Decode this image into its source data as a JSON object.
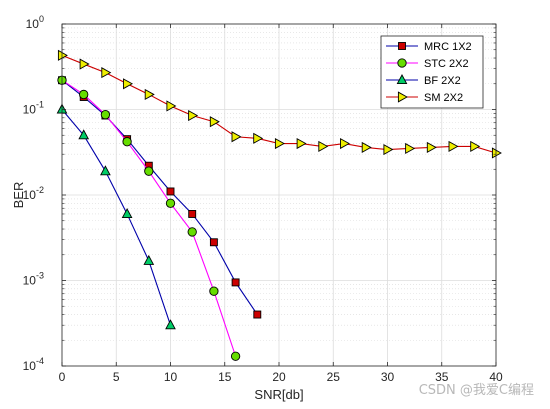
{
  "chart_data": {
    "type": "line",
    "xlabel": "SNR[db]",
    "ylabel": "BER",
    "xlim": [
      0,
      40
    ],
    "ylim": [
      0.0001,
      1
    ],
    "yscale": "log",
    "grid": true,
    "legend_position": "top-right",
    "xticks": [
      "0",
      "5",
      "10",
      "15",
      "20",
      "25",
      "30",
      "35",
      "40"
    ],
    "yticks": [
      {
        "base": "10",
        "exp": "0",
        "value": 1
      },
      {
        "base": "10",
        "exp": "-1",
        "value": 0.1
      },
      {
        "base": "10",
        "exp": "-2",
        "value": 0.01
      },
      {
        "base": "10",
        "exp": "-3",
        "value": 0.001
      },
      {
        "base": "10",
        "exp": "-4",
        "value": 0.0001
      }
    ],
    "series": [
      {
        "name": "MRC 1X2",
        "color": "#0000aa",
        "marker": "square",
        "marker_fill": "#cc0000",
        "x": [
          0,
          2,
          4,
          6,
          8,
          10,
          12,
          14,
          16,
          18
        ],
        "y": [
          0.22,
          0.14,
          0.085,
          0.045,
          0.022,
          0.011,
          0.006,
          0.0028,
          0.00095,
          0.0004
        ]
      },
      {
        "name": "STC 2X2",
        "color": "#ff00ff",
        "marker": "circle",
        "marker_fill": "#66dd00",
        "x": [
          0,
          2,
          4,
          6,
          8,
          10,
          12,
          14,
          16
        ],
        "y": [
          0.22,
          0.15,
          0.087,
          0.042,
          0.019,
          0.008,
          0.0037,
          0.00075,
          0.00013
        ]
      },
      {
        "name": "BF 2X2",
        "color": "#0000aa",
        "marker": "triangle-up",
        "marker_fill": "#00cc66",
        "x": [
          0,
          2,
          4,
          6,
          8,
          10
        ],
        "y": [
          0.1,
          0.05,
          0.019,
          0.006,
          0.0017,
          0.0003
        ]
      },
      {
        "name": "SM 2X2",
        "color": "#cc0000",
        "marker": "triangle-right",
        "marker_fill": "#eeee00",
        "x": [
          0,
          2,
          4,
          6,
          8,
          10,
          12,
          14,
          16,
          18,
          20,
          22,
          24,
          26,
          28,
          30,
          32,
          34,
          36,
          38,
          40
        ],
        "y": [
          0.43,
          0.34,
          0.27,
          0.2,
          0.15,
          0.11,
          0.085,
          0.072,
          0.048,
          0.046,
          0.04,
          0.04,
          0.037,
          0.04,
          0.036,
          0.034,
          0.035,
          0.036,
          0.037,
          0.037,
          0.031
        ]
      }
    ]
  },
  "watermark": "CSDN @我爱C编程"
}
